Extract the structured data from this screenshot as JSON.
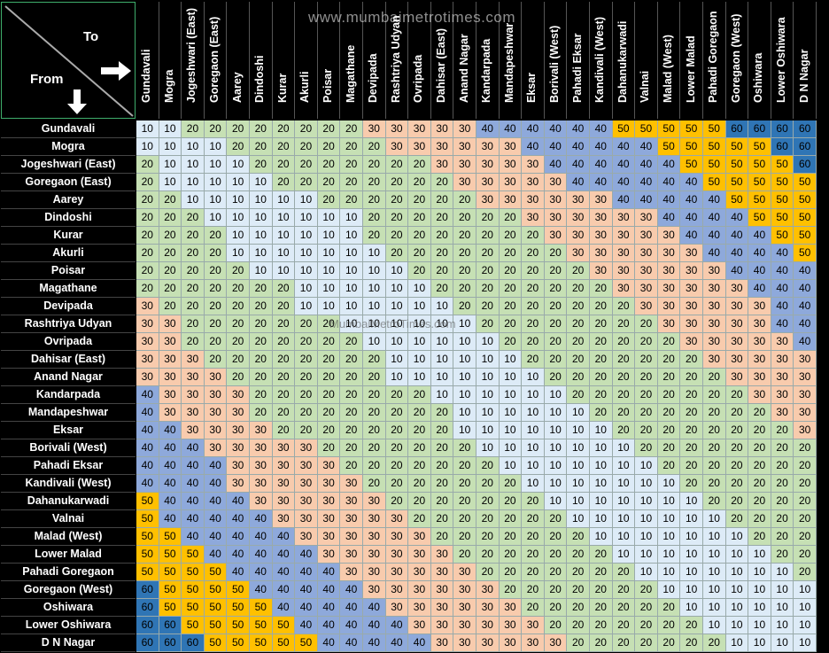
{
  "corner": {
    "to_label": "To",
    "from_label": "From"
  },
  "watermark": {
    "top": "www.mumbaimetrotimes.com",
    "middle": "MumbaiMetroTimes.com"
  },
  "fare_colors": {
    "10": "#ddebf7",
    "20": "#c6e0b4",
    "30": "#f8cbad",
    "40": "#8ea9db",
    "50": "#ffc000",
    "60": "#2f75b5"
  },
  "stations": [
    "Gundavali",
    "Mogra",
    "Jogeshwari (East)",
    "Goregaon (East)",
    "Aarey",
    "Dindoshi",
    "Kurar",
    "Akurli",
    "Poisar",
    "Magathane",
    "Devipada",
    "Rashtriya Udyan",
    "Ovripada",
    "Dahisar (East)",
    "Anand Nagar",
    "Kandarpada",
    "Mandapeshwar",
    "Eksar",
    "Borivali (West)",
    "Pahadi Eksar",
    "Kandivali (West)",
    "Dahanukarwadi",
    "Valnai",
    "Malad (West)",
    "Lower Malad",
    "Pahadi Goregaon",
    "Goregaon (West)",
    "Oshiwara",
    "Lower Oshiwara",
    "D N Nagar"
  ],
  "fares": [
    [
      10,
      10,
      20,
      20,
      20,
      20,
      20,
      20,
      20,
      20,
      30,
      30,
      30,
      30,
      30,
      40,
      40,
      40,
      40,
      40,
      40,
      50,
      50,
      50,
      50,
      50,
      60,
      60,
      60,
      60
    ],
    [
      10,
      10,
      10,
      10,
      20,
      20,
      20,
      20,
      20,
      20,
      20,
      30,
      30,
      30,
      30,
      30,
      30,
      40,
      40,
      40,
      40,
      40,
      40,
      50,
      50,
      50,
      50,
      50,
      60,
      60
    ],
    [
      20,
      10,
      10,
      10,
      10,
      20,
      20,
      20,
      20,
      20,
      20,
      20,
      20,
      30,
      30,
      30,
      30,
      30,
      40,
      40,
      40,
      40,
      40,
      40,
      50,
      50,
      50,
      50,
      50,
      60
    ],
    [
      20,
      10,
      10,
      10,
      10,
      10,
      20,
      20,
      20,
      20,
      20,
      20,
      20,
      20,
      30,
      30,
      30,
      30,
      30,
      40,
      40,
      40,
      40,
      40,
      40,
      50,
      50,
      50,
      50,
      50
    ],
    [
      20,
      20,
      10,
      10,
      10,
      10,
      10,
      10,
      20,
      20,
      20,
      20,
      20,
      20,
      20,
      30,
      30,
      30,
      30,
      30,
      30,
      40,
      40,
      40,
      40,
      40,
      50,
      50,
      50,
      50
    ],
    [
      20,
      20,
      20,
      10,
      10,
      10,
      10,
      10,
      10,
      10,
      20,
      20,
      20,
      20,
      20,
      20,
      20,
      30,
      30,
      30,
      30,
      30,
      30,
      40,
      40,
      40,
      40,
      50,
      50,
      50
    ],
    [
      20,
      20,
      20,
      20,
      10,
      10,
      10,
      10,
      10,
      10,
      20,
      20,
      20,
      20,
      20,
      20,
      20,
      20,
      30,
      30,
      30,
      30,
      30,
      30,
      40,
      40,
      40,
      40,
      50,
      50
    ],
    [
      20,
      20,
      20,
      20,
      10,
      10,
      10,
      10,
      10,
      10,
      10,
      20,
      20,
      20,
      20,
      20,
      20,
      20,
      20,
      30,
      30,
      30,
      30,
      30,
      30,
      40,
      40,
      40,
      40,
      50
    ],
    [
      20,
      20,
      20,
      20,
      20,
      10,
      10,
      10,
      10,
      10,
      10,
      10,
      20,
      20,
      20,
      20,
      20,
      20,
      20,
      20,
      30,
      30,
      30,
      30,
      30,
      30,
      40,
      40,
      40,
      40
    ],
    [
      20,
      20,
      20,
      20,
      20,
      20,
      20,
      10,
      10,
      10,
      10,
      10,
      10,
      20,
      20,
      20,
      20,
      20,
      20,
      20,
      20,
      30,
      30,
      30,
      30,
      30,
      30,
      40,
      40,
      40
    ],
    [
      30,
      20,
      20,
      20,
      20,
      20,
      20,
      10,
      10,
      10,
      10,
      10,
      10,
      10,
      20,
      20,
      20,
      20,
      20,
      20,
      20,
      20,
      30,
      30,
      30,
      30,
      30,
      30,
      40,
      40
    ],
    [
      30,
      30,
      20,
      20,
      20,
      20,
      20,
      20,
      20,
      10,
      10,
      10,
      10,
      10,
      10,
      20,
      20,
      20,
      20,
      20,
      20,
      20,
      20,
      30,
      30,
      30,
      30,
      30,
      40,
      40
    ],
    [
      30,
      30,
      20,
      20,
      20,
      20,
      20,
      20,
      20,
      20,
      10,
      10,
      10,
      10,
      10,
      10,
      20,
      20,
      20,
      20,
      20,
      20,
      20,
      20,
      30,
      30,
      30,
      30,
      30,
      40
    ],
    [
      30,
      30,
      30,
      20,
      20,
      20,
      20,
      20,
      20,
      20,
      20,
      10,
      10,
      10,
      10,
      10,
      10,
      20,
      20,
      20,
      20,
      20,
      20,
      20,
      20,
      30,
      30,
      30,
      30,
      30
    ],
    [
      30,
      30,
      30,
      30,
      20,
      20,
      20,
      20,
      20,
      20,
      20,
      10,
      10,
      10,
      10,
      10,
      10,
      10,
      20,
      20,
      20,
      20,
      20,
      20,
      20,
      20,
      30,
      30,
      30,
      30
    ],
    [
      40,
      30,
      30,
      30,
      30,
      20,
      20,
      20,
      20,
      20,
      20,
      20,
      20,
      10,
      10,
      10,
      10,
      10,
      10,
      20,
      20,
      20,
      20,
      20,
      20,
      20,
      20,
      30,
      30,
      30
    ],
    [
      40,
      30,
      30,
      30,
      30,
      20,
      20,
      20,
      20,
      20,
      20,
      20,
      20,
      20,
      10,
      10,
      10,
      10,
      10,
      10,
      20,
      20,
      20,
      20,
      20,
      20,
      20,
      20,
      30,
      30
    ],
    [
      40,
      40,
      30,
      30,
      30,
      30,
      20,
      20,
      20,
      20,
      20,
      20,
      20,
      20,
      10,
      10,
      10,
      10,
      10,
      10,
      10,
      20,
      20,
      20,
      20,
      20,
      20,
      20,
      20,
      30
    ],
    [
      40,
      40,
      40,
      30,
      30,
      30,
      30,
      30,
      20,
      20,
      20,
      20,
      20,
      20,
      20,
      10,
      10,
      10,
      10,
      10,
      10,
      10,
      20,
      20,
      20,
      20,
      20,
      20,
      20,
      20
    ],
    [
      40,
      40,
      40,
      40,
      30,
      30,
      30,
      30,
      30,
      20,
      20,
      20,
      20,
      20,
      20,
      20,
      10,
      10,
      10,
      10,
      10,
      10,
      10,
      20,
      20,
      20,
      20,
      20,
      20,
      20
    ],
    [
      40,
      40,
      40,
      40,
      30,
      30,
      30,
      30,
      30,
      30,
      20,
      20,
      20,
      20,
      20,
      20,
      20,
      10,
      10,
      10,
      10,
      10,
      10,
      10,
      20,
      20,
      20,
      20,
      20,
      20
    ],
    [
      50,
      40,
      40,
      40,
      40,
      30,
      30,
      30,
      30,
      30,
      30,
      20,
      20,
      20,
      20,
      20,
      20,
      20,
      10,
      10,
      10,
      10,
      10,
      10,
      10,
      20,
      20,
      20,
      20,
      20
    ],
    [
      50,
      40,
      40,
      40,
      40,
      40,
      30,
      30,
      30,
      30,
      30,
      30,
      20,
      20,
      20,
      20,
      20,
      20,
      20,
      10,
      10,
      10,
      10,
      10,
      10,
      10,
      20,
      20,
      20,
      20
    ],
    [
      50,
      50,
      40,
      40,
      40,
      40,
      40,
      30,
      30,
      30,
      30,
      30,
      30,
      20,
      20,
      20,
      20,
      20,
      20,
      20,
      10,
      10,
      10,
      10,
      10,
      10,
      10,
      20,
      20,
      20
    ],
    [
      50,
      50,
      50,
      40,
      40,
      40,
      40,
      40,
      30,
      30,
      30,
      30,
      30,
      30,
      20,
      20,
      20,
      20,
      20,
      20,
      20,
      10,
      10,
      10,
      10,
      10,
      10,
      10,
      20,
      20
    ],
    [
      50,
      50,
      50,
      50,
      40,
      40,
      40,
      40,
      40,
      30,
      30,
      30,
      30,
      30,
      30,
      20,
      20,
      20,
      20,
      20,
      20,
      20,
      10,
      10,
      10,
      10,
      10,
      10,
      10,
      20
    ],
    [
      60,
      50,
      50,
      50,
      50,
      40,
      40,
      40,
      40,
      40,
      30,
      30,
      30,
      30,
      30,
      30,
      20,
      20,
      20,
      20,
      20,
      20,
      20,
      10,
      10,
      10,
      10,
      10,
      10,
      10
    ],
    [
      60,
      50,
      50,
      50,
      50,
      50,
      40,
      40,
      40,
      40,
      40,
      30,
      30,
      30,
      30,
      30,
      30,
      20,
      20,
      20,
      20,
      20,
      20,
      20,
      10,
      10,
      10,
      10,
      10,
      10
    ],
    [
      60,
      60,
      50,
      50,
      50,
      50,
      50,
      40,
      40,
      40,
      40,
      40,
      30,
      30,
      30,
      30,
      30,
      30,
      20,
      20,
      20,
      20,
      20,
      20,
      20,
      10,
      10,
      10,
      10,
      10
    ],
    [
      60,
      60,
      60,
      50,
      50,
      50,
      50,
      50,
      40,
      40,
      40,
      40,
      40,
      30,
      30,
      30,
      30,
      30,
      30,
      20,
      20,
      20,
      20,
      20,
      20,
      20,
      10,
      10,
      10,
      10
    ]
  ]
}
